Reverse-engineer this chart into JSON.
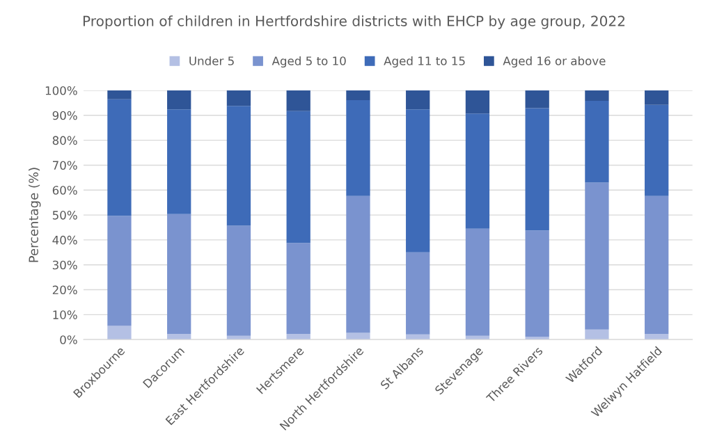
{
  "chart_data": {
    "type": "bar",
    "stacked": true,
    "title": "Proportion of children in Hertfordshire districts with EHCP by age group, 2022",
    "ylabel": "Percentage (%)",
    "categories": [
      "Broxbourne",
      "Dacorum",
      "East Hertfordshire",
      "Hertsmere",
      "North Hertfordshire",
      "St Albans",
      "Stevenage",
      "Three Rivers",
      "Watford",
      "Welwyn Hatfield"
    ],
    "series": [
      {
        "name": "Under 5",
        "color": "#b4c0e4",
        "values": [
          5.5,
          2.3,
          1.5,
          2.3,
          2.7,
          2.1,
          1.5,
          1.1,
          4.0,
          2.3
        ]
      },
      {
        "name": "Aged 5 to 10",
        "color": "#7a93cf",
        "values": [
          44.2,
          48.1,
          44.2,
          36.5,
          54.9,
          32.9,
          43.0,
          42.7,
          59.0,
          55.3
        ]
      },
      {
        "name": "Aged 11 to 15",
        "color": "#3e6bb8",
        "values": [
          46.7,
          42.0,
          48.1,
          52.9,
          38.5,
          57.4,
          46.2,
          49.1,
          32.8,
          36.6
        ]
      },
      {
        "name": "Aged 16 or above",
        "color": "#2f5597",
        "values": [
          3.6,
          7.6,
          6.2,
          8.3,
          3.9,
          7.6,
          9.3,
          7.1,
          4.2,
          5.8
        ]
      }
    ],
    "ylim": [
      0,
      100
    ],
    "yticks": [
      {
        "value": 0,
        "label": "0%"
      },
      {
        "value": 10,
        "label": "10%"
      },
      {
        "value": 20,
        "label": "20%"
      },
      {
        "value": 30,
        "label": "30%"
      },
      {
        "value": 40,
        "label": "40%"
      },
      {
        "value": 50,
        "label": "50%"
      },
      {
        "value": 60,
        "label": "60%"
      },
      {
        "value": 70,
        "label": "70%"
      },
      {
        "value": 80,
        "label": "80%"
      },
      {
        "value": 90,
        "label": "90%"
      },
      {
        "value": 100,
        "label": "100%"
      }
    ],
    "grid": "y",
    "legend": "top"
  }
}
